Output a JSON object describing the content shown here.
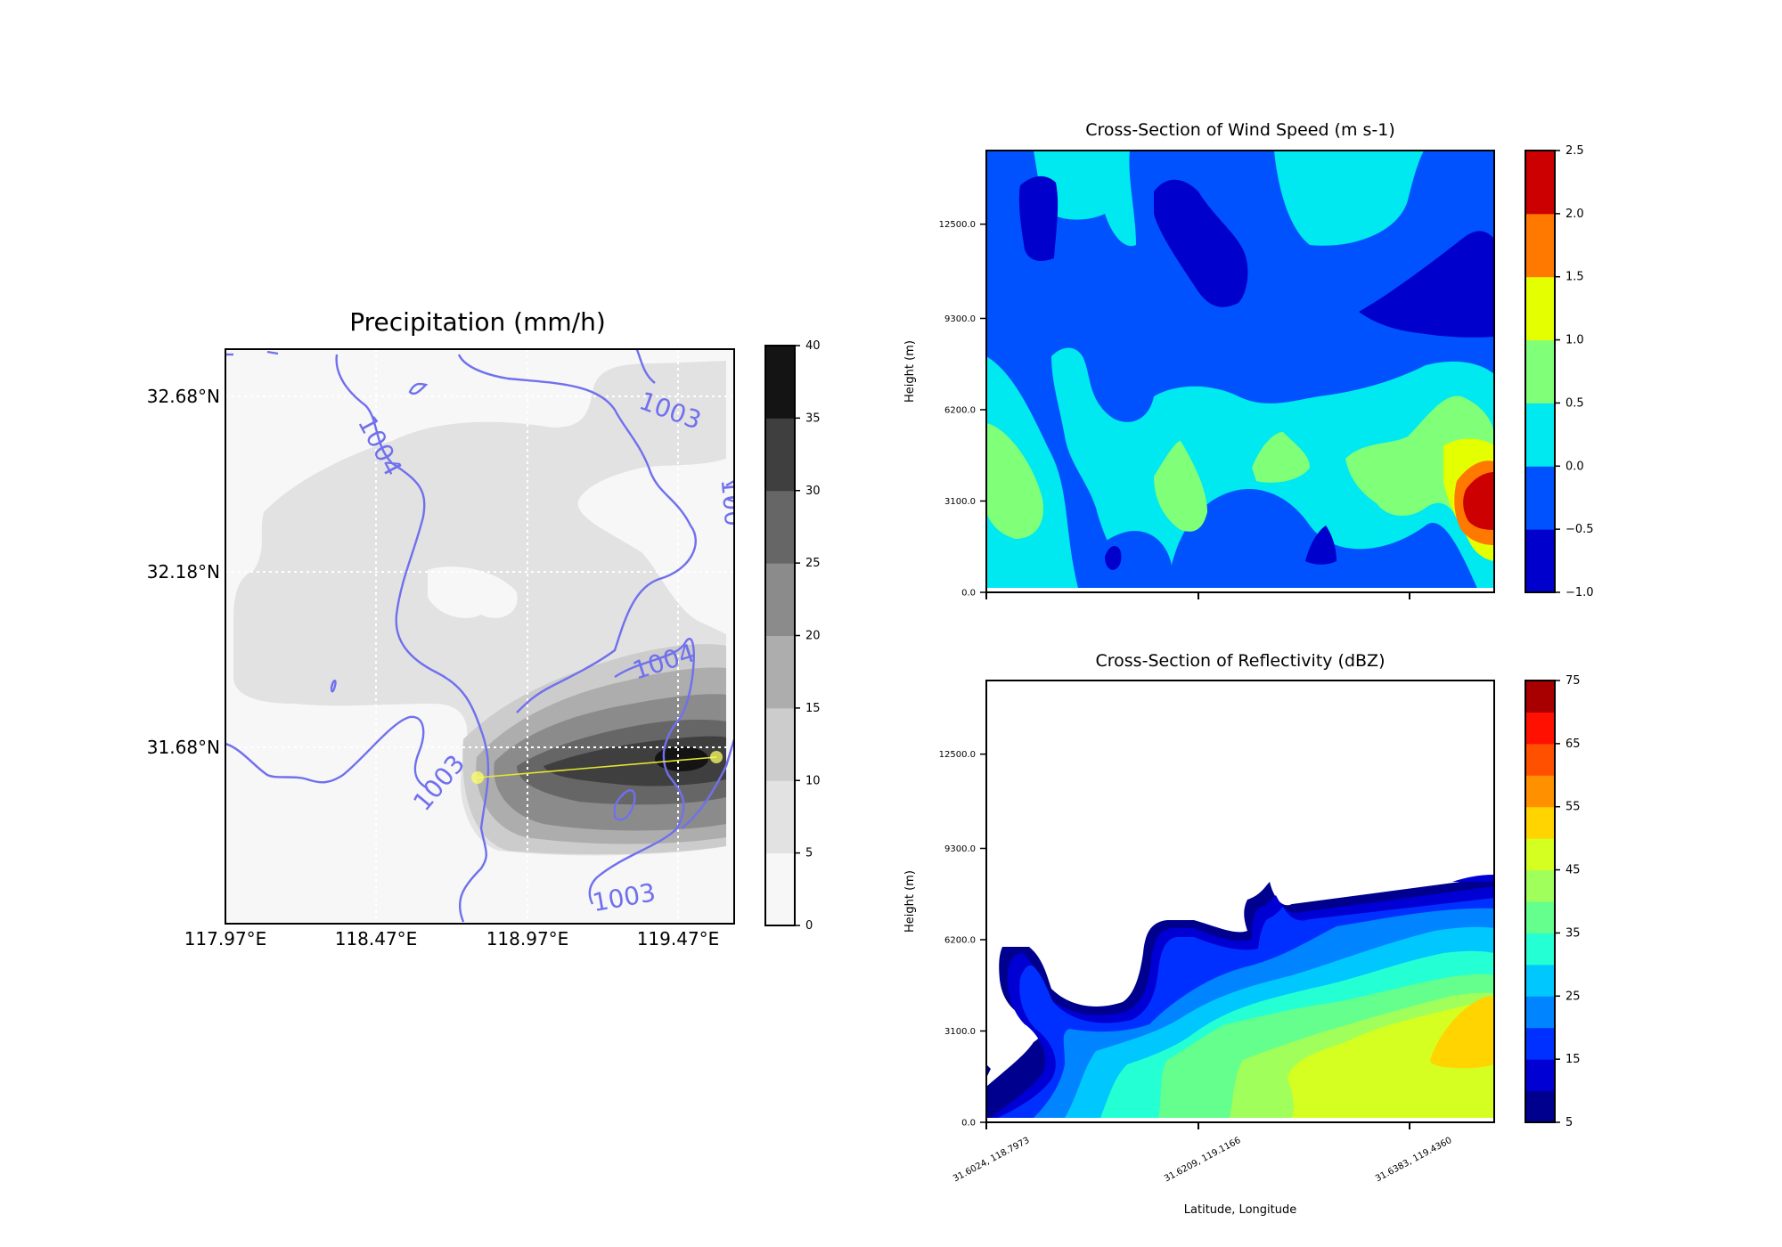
{
  "chart_data": [
    {
      "type": "heatmap",
      "title": "Precipitation (mm/h)",
      "x_ticks": [
        "117.97°E",
        "118.47°E",
        "118.97°E",
        "119.47°E"
      ],
      "y_ticks": [
        "32.68°N",
        "32.18°N",
        "31.68°N"
      ],
      "colorbar": {
        "colormap": "Greys",
        "ticks": [
          "0",
          "5",
          "10",
          "15",
          "20",
          "25",
          "30",
          "35",
          "40"
        ],
        "range": [
          0,
          40
        ]
      },
      "colors": [
        "#f7f7f7",
        "#e2e2e2",
        "#cccccc",
        "#adadad",
        "#8b8b8b",
        "#666666",
        "#3f3f3f",
        "#141414"
      ],
      "contour_labels": [
        "1004",
        "1003",
        "1004",
        "1003",
        "1003",
        "1003",
        "100"
      ],
      "cross_section_line": {
        "start": [
          118.8,
          31.62
        ],
        "end": [
          119.59,
          31.68
        ],
        "color": "#ffff66"
      }
    },
    {
      "type": "heatmap",
      "title": "Cross-Section of Wind Speed (m s-1)",
      "ylabel": "Height (m)",
      "y_ticks": [
        "0.0",
        "3100.0",
        "6200.0",
        "9300.0",
        "12500.0"
      ],
      "colorbar": {
        "colormap": "jet",
        "ticks": [
          "2.5",
          "2.0",
          "1.5",
          "1.0",
          "0.5",
          "0.0",
          "−0.5",
          "−1.0"
        ],
        "range": [
          -1.0,
          2.5
        ]
      },
      "colors": [
        "#0000cd",
        "#0052ff",
        "#00e8f0",
        "#80ff78",
        "#e4ff00",
        "#ff7800",
        "#cc0000"
      ]
    },
    {
      "type": "heatmap",
      "title": "Cross-Section of Reflectivity (dBZ)",
      "xlabel": "Latitude, Longitude",
      "ylabel": "Height (m)",
      "x_ticks": [
        "31.6024, 118.7973",
        "31.6209, 119.1166",
        "31.6383, 119.4360"
      ],
      "y_ticks": [
        "0.0",
        "3100.0",
        "6200.0",
        "9300.0",
        "12500.0"
      ],
      "colorbar": {
        "colormap": "jet",
        "ticks": [
          "75",
          "65",
          "55",
          "45",
          "35",
          "25",
          "15",
          "5"
        ],
        "range": [
          5,
          75
        ]
      },
      "colors": [
        "#00008f",
        "#0000d4",
        "#0030ff",
        "#0084ff",
        "#00c8ff",
        "#24ffd4",
        "#64ff8c",
        "#a0ff5a",
        "#d4ff20",
        "#ffd400",
        "#ff9000",
        "#ff5000",
        "#ff1000",
        "#a80000"
      ]
    }
  ]
}
